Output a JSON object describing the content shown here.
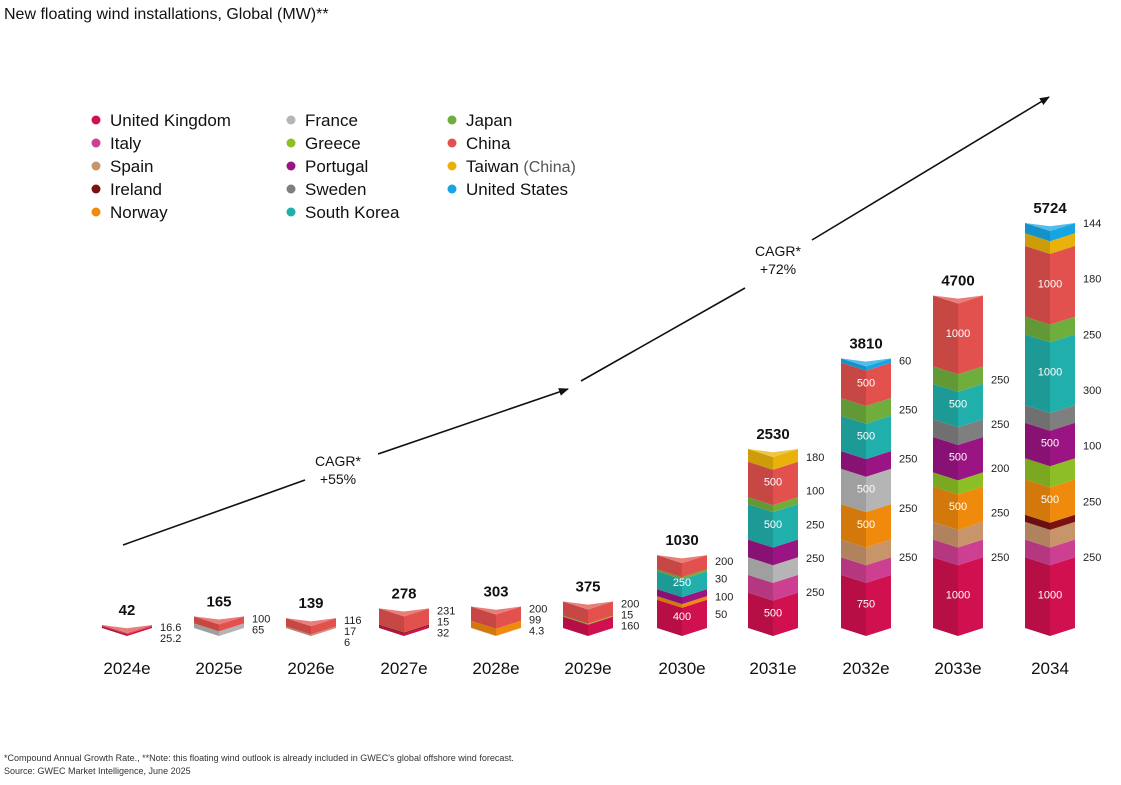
{
  "title": "New floating wind installations, Global  (MW)**",
  "footnote": "*Compound Annual Growth Rate., **Note: this floating wind outlook is already included in GWEC's global offshore wind forecast.",
  "source": "Source: GWEC Market Intelligence, June 2025",
  "cagr": [
    {
      "label": "CAGR*",
      "value": "+55%"
    },
    {
      "label": "CAGR*",
      "value": "+72%"
    }
  ],
  "chart_data": {
    "type": "bar",
    "stacked": true,
    "categories": [
      "2024e",
      "2025e",
      "2026e",
      "2027e",
      "2028e",
      "2029e",
      "2030e",
      "2031e",
      "2032e",
      "2033e",
      "2034"
    ],
    "totals": [
      "42",
      "165",
      "139",
      "278",
      "303",
      "375",
      "1030",
      "2530",
      "3810",
      "4700",
      "5724"
    ],
    "legend": [
      {
        "name": "United Kingdom",
        "color": "#d0104f"
      },
      {
        "name": "Italy",
        "color": "#cc3f91"
      },
      {
        "name": "Spain",
        "color": "#c8956b"
      },
      {
        "name": "Ireland",
        "color": "#7a1212"
      },
      {
        "name": "Norway",
        "color": "#f08a0c"
      },
      {
        "name": "France",
        "color": "#b5b5b5"
      },
      {
        "name": "Greece",
        "color": "#8cbf26"
      },
      {
        "name": "Portugal",
        "color": "#9a1583"
      },
      {
        "name": "Sweden",
        "color": "#7f7f7f"
      },
      {
        "name": "South Korea",
        "color": "#21afab"
      },
      {
        "name": "Japan",
        "color": "#6fae3d"
      },
      {
        "name": "China",
        "color": "#e2514e"
      },
      {
        "name": "Taiwan",
        "note": "(China)",
        "color": "#e9b20a"
      },
      {
        "name": "United States",
        "color": "#16a5e3"
      }
    ],
    "bars": [
      {
        "segments": [
          {
            "series": "United Kingdom",
            "value": 25.2
          },
          {
            "series": "China",
            "value": 16.6
          }
        ],
        "labels": [
          "16.6",
          "25.2"
        ]
      },
      {
        "segments": [
          {
            "series": "France",
            "value": 65
          },
          {
            "series": "China",
            "value": 100
          }
        ],
        "labels": [
          "100",
          "65"
        ]
      },
      {
        "segments": [
          {
            "series": "Italy",
            "value": 6
          },
          {
            "series": "Spain",
            "value": 17
          },
          {
            "series": "China",
            "value": 116
          }
        ],
        "labels": [
          "116",
          "17",
          "6"
        ]
      },
      {
        "segments": [
          {
            "series": "United Kingdom",
            "value": 32
          },
          {
            "series": "Ireland",
            "value": 15
          },
          {
            "series": "China",
            "value": 231
          }
        ],
        "labels": [
          "231",
          "15",
          "32"
        ]
      },
      {
        "segments": [
          {
            "series": "Spain",
            "value": 4.3
          },
          {
            "series": "Norway",
            "value": 99
          },
          {
            "series": "China",
            "value": 200
          }
        ],
        "labels": [
          "200",
          "99",
          "4.3"
        ]
      },
      {
        "segments": [
          {
            "series": "United Kingdom",
            "value": 160
          },
          {
            "series": "Greece",
            "value": 15
          },
          {
            "series": "China",
            "value": 200
          }
        ],
        "labels": [
          "200",
          "15",
          "160"
        ]
      },
      {
        "segments": [
          {
            "series": "United Kingdom",
            "value": 400,
            "label": "400"
          },
          {
            "series": "Norway",
            "value": 50
          },
          {
            "series": "Portugal",
            "value": 100
          },
          {
            "series": "South Korea",
            "value": 250,
            "label": "250"
          },
          {
            "series": "Japan",
            "value": 30
          },
          {
            "series": "China",
            "value": 200
          }
        ],
        "labels": [
          "200",
          "30",
          "100",
          "50"
        ]
      },
      {
        "segments": [
          {
            "series": "United Kingdom",
            "value": 500,
            "label": "500"
          },
          {
            "series": "Italy",
            "value": 250
          },
          {
            "series": "France",
            "value": 250
          },
          {
            "series": "Portugal",
            "value": 250
          },
          {
            "series": "South Korea",
            "value": 500,
            "label": "500"
          },
          {
            "series": "Japan",
            "value": 100
          },
          {
            "series": "China",
            "value": 500,
            "label": "500"
          },
          {
            "series": "Taiwan",
            "value": 180
          }
        ],
        "labels": [
          "180",
          "100",
          "250",
          "250",
          "250"
        ]
      },
      {
        "segments": [
          {
            "series": "United Kingdom",
            "value": 750,
            "label": "750"
          },
          {
            "series": "Italy",
            "value": 250
          },
          {
            "series": "Spain",
            "value": 250
          },
          {
            "series": "Norway",
            "value": 500,
            "label": "500"
          },
          {
            "series": "France",
            "value": 500,
            "label": "500"
          },
          {
            "series": "Portugal",
            "value": 250
          },
          {
            "series": "South Korea",
            "value": 500,
            "label": "500"
          },
          {
            "series": "Japan",
            "value": 250
          },
          {
            "series": "China",
            "value": 500,
            "label": "500"
          },
          {
            "series": "United States",
            "value": 60
          }
        ],
        "labels": [
          "60",
          "250",
          "250",
          "250",
          "250"
        ]
      },
      {
        "segments": [
          {
            "series": "United Kingdom",
            "value": 1000,
            "label": "1000"
          },
          {
            "series": "Italy",
            "value": 250
          },
          {
            "series": "Spain",
            "value": 250
          },
          {
            "series": "Norway",
            "value": 500,
            "label": "500"
          },
          {
            "series": "Greece",
            "value": 200
          },
          {
            "series": "Portugal",
            "value": 500,
            "label": "500"
          },
          {
            "series": "Sweden",
            "value": 250
          },
          {
            "series": "South Korea",
            "value": 500,
            "label": "500"
          },
          {
            "series": "Japan",
            "value": 250
          },
          {
            "series": "China",
            "value": 1000,
            "label": "1000"
          }
        ],
        "labels": [
          "250",
          "250",
          "200",
          "250",
          "250"
        ]
      },
      {
        "segments": [
          {
            "series": "United Kingdom",
            "value": 1000,
            "label": "1000"
          },
          {
            "series": "Italy",
            "value": 250
          },
          {
            "series": "Spain",
            "value": 250
          },
          {
            "series": "Ireland",
            "value": 100
          },
          {
            "series": "Norway",
            "value": 500,
            "label": "500"
          },
          {
            "series": "Greece",
            "value": 300
          },
          {
            "series": "Portugal",
            "value": 500,
            "label": "500"
          },
          {
            "series": "Sweden",
            "value": 250
          },
          {
            "series": "South Korea",
            "value": 1000,
            "label": "1000"
          },
          {
            "series": "Japan",
            "value": 250
          },
          {
            "series": "China",
            "value": 1000,
            "label": "1000"
          },
          {
            "series": "Taiwan",
            "value": 180
          },
          {
            "series": "United States",
            "value": 144
          }
        ],
        "labels": [
          "144",
          "180",
          "250",
          "300",
          "100",
          "250",
          "250"
        ]
      }
    ]
  }
}
